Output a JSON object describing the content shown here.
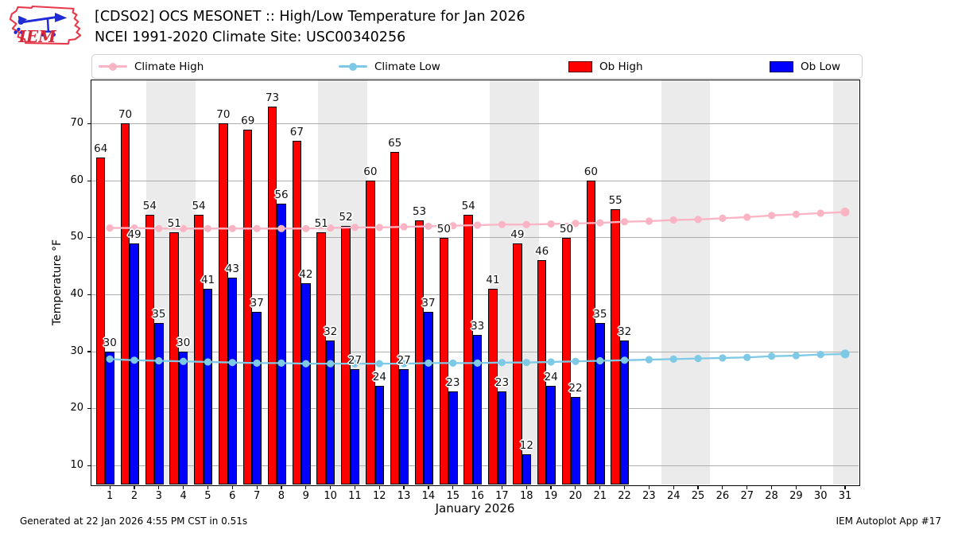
{
  "header": {
    "title_line1": "[CDSO2] OCS MESONET :: High/Low Temperature for Jan 2026",
    "title_line2": "NCEI 1991-2020 Climate Site: USC00340256",
    "logo_text": "IEM"
  },
  "legend": {
    "items": [
      {
        "label": "Climate High",
        "type": "line",
        "color": "#FBB4C4"
      },
      {
        "label": "Climate Low",
        "type": "line",
        "color": "#7EC9E6"
      },
      {
        "label": "Ob High",
        "type": "patch",
        "color": "#FF0000"
      },
      {
        "label": "Ob Low",
        "type": "patch",
        "color": "#0000FF"
      }
    ]
  },
  "axes": {
    "y_label": "Temperature °F",
    "x_label": "January 2026"
  },
  "footer": {
    "left": "Generated at 22 Jan 2026 4:55 PM CST in 0.51s",
    "right": "IEM Autoplot App #17"
  },
  "chart_data": {
    "type": "bar",
    "title": "[CDSO2] OCS MESONET :: High/Low Temperature for Jan 2026",
    "xlabel": "January 2026",
    "ylabel": "Temperature °F",
    "xlim": [
      0.25,
      31.55
    ],
    "ylim": [
      6.7,
      77.6
    ],
    "yticks": [
      10,
      20,
      30,
      40,
      50,
      60,
      70
    ],
    "xticks": [
      1,
      2,
      3,
      4,
      5,
      6,
      7,
      8,
      9,
      10,
      11,
      12,
      13,
      14,
      15,
      16,
      17,
      18,
      19,
      20,
      21,
      22,
      23,
      24,
      25,
      26,
      27,
      28,
      29,
      30,
      31
    ],
    "grid": true,
    "legend_position": "top",
    "weekend_bands": [
      [
        2.5,
        4.5
      ],
      [
        9.5,
        11.5
      ],
      [
        16.5,
        18.5
      ],
      [
        23.5,
        25.5
      ],
      [
        30.5,
        31.55
      ]
    ],
    "series": [
      {
        "name": "Ob High",
        "type": "bar",
        "color": "#FF0000",
        "x": [
          1,
          2,
          3,
          4,
          5,
          6,
          7,
          8,
          9,
          10,
          11,
          12,
          13,
          14,
          15,
          16,
          17,
          18,
          19,
          20,
          21,
          22
        ],
        "values": [
          64,
          70,
          54,
          51,
          54,
          70,
          69,
          73,
          67,
          51,
          52,
          60,
          65,
          53,
          50,
          54,
          41,
          49,
          46,
          50,
          60,
          55
        ]
      },
      {
        "name": "Ob Low",
        "type": "bar",
        "color": "#0000FF",
        "x": [
          1,
          2,
          3,
          4,
          5,
          6,
          7,
          8,
          9,
          10,
          11,
          12,
          13,
          14,
          15,
          16,
          17,
          18,
          19,
          20,
          21,
          22
        ],
        "values": [
          30,
          49,
          35,
          30,
          41,
          43,
          37,
          56,
          42,
          32,
          27,
          24,
          27,
          37,
          23,
          33,
          23,
          12,
          24,
          22,
          35,
          32
        ]
      },
      {
        "name": "Climate High",
        "type": "line",
        "color": "#FBB4C4",
        "x": [
          1,
          2,
          3,
          4,
          5,
          6,
          7,
          8,
          9,
          10,
          11,
          12,
          13,
          14,
          15,
          16,
          17,
          18,
          19,
          20,
          21,
          22,
          23,
          24,
          25,
          26,
          27,
          28,
          29,
          30,
          31
        ],
        "values": [
          51.7,
          51.7,
          51.6,
          51.6,
          51.6,
          51.6,
          51.6,
          51.6,
          51.6,
          51.7,
          51.8,
          51.8,
          51.9,
          52.0,
          52.1,
          52.2,
          52.3,
          52.3,
          52.4,
          52.5,
          52.6,
          52.8,
          52.9,
          53.1,
          53.2,
          53.4,
          53.6,
          53.9,
          54.1,
          54.3,
          54.5
        ]
      },
      {
        "name": "Climate Low",
        "type": "line",
        "color": "#7EC9E6",
        "x": [
          1,
          2,
          3,
          4,
          5,
          6,
          7,
          8,
          9,
          10,
          11,
          12,
          13,
          14,
          15,
          16,
          17,
          18,
          19,
          20,
          21,
          22,
          23,
          24,
          25,
          26,
          27,
          28,
          29,
          30,
          31
        ],
        "values": [
          28.7,
          28.5,
          28.4,
          28.3,
          28.2,
          28.1,
          28.0,
          28.0,
          27.9,
          27.9,
          27.9,
          27.9,
          27.9,
          28.0,
          28.0,
          28.0,
          28.1,
          28.1,
          28.2,
          28.3,
          28.4,
          28.5,
          28.6,
          28.7,
          28.8,
          28.9,
          29.0,
          29.2,
          29.3,
          29.5,
          29.6
        ]
      }
    ],
    "colors": {
      "band": "#EBEBEB",
      "grid": "#ADADAD",
      "bar_edge": "#000000"
    }
  }
}
